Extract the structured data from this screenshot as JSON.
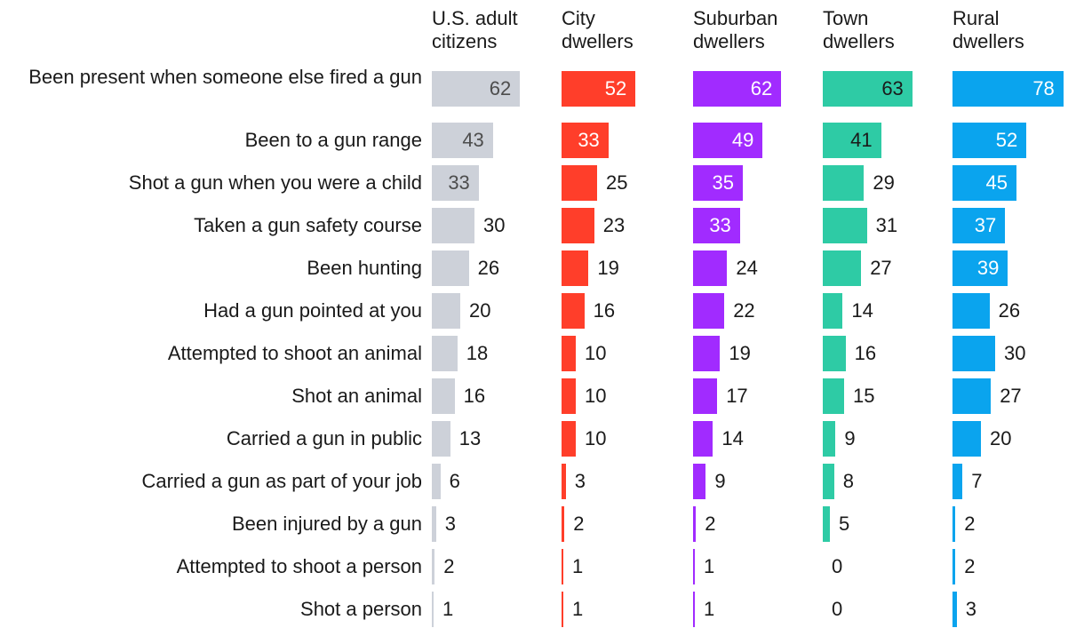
{
  "chart_data": {
    "type": "bar",
    "categories": [
      "Been present when someone else fired a gun",
      "Been to a gun range",
      "Shot a gun when you were a child",
      "Taken a gun safety course",
      "Been hunting",
      "Had a gun pointed at you",
      "Attempted to shoot an animal",
      "Shot an animal",
      "Carried a gun in public",
      "Carried a gun as part of your job",
      "Been injured by a gun",
      "Attempted to shoot a person",
      "Shot a person"
    ],
    "series": [
      {
        "name": "U.S. adult\ncitizens",
        "color": "#cdd1d9",
        "label_color": "#4d4d4d",
        "values": [
          62,
          43,
          33,
          30,
          26,
          20,
          18,
          16,
          13,
          6,
          3,
          2,
          1
        ]
      },
      {
        "name": "City\ndwellers",
        "color": "#ff3e2a",
        "label_color": "#ffffff",
        "values": [
          52,
          33,
          25,
          23,
          19,
          16,
          10,
          10,
          10,
          3,
          2,
          1,
          1
        ]
      },
      {
        "name": "Suburban\ndwellers",
        "color": "#a12bff",
        "label_color": "#ffffff",
        "values": [
          62,
          49,
          35,
          33,
          24,
          22,
          19,
          17,
          14,
          9,
          2,
          1,
          1
        ]
      },
      {
        "name": "Town\ndwellers",
        "color": "#2ecba5",
        "label_color": "#1a1a1a",
        "values": [
          63,
          41,
          29,
          31,
          27,
          14,
          16,
          15,
          9,
          8,
          5,
          0,
          0
        ]
      },
      {
        "name": "Rural\ndwellers",
        "color": "#0aa4ee",
        "label_color": "#ffffff",
        "values": [
          78,
          52,
          45,
          37,
          39,
          26,
          30,
          27,
          20,
          7,
          2,
          2,
          3
        ]
      }
    ],
    "xlim": [
      0,
      80
    ],
    "grid": false,
    "legend": "none"
  }
}
